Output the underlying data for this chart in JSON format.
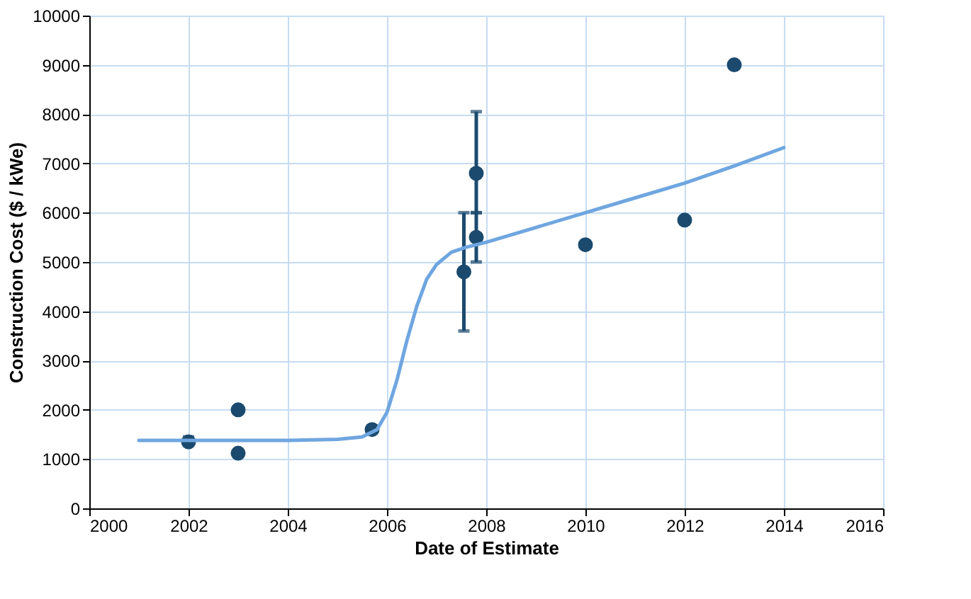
{
  "chart_data": {
    "type": "scatter",
    "xlabel": "Date of Estimate",
    "ylabel": "Construction Cost ($ / kWe)",
    "xlim": [
      2000,
      2016
    ],
    "xticks": [
      2000,
      2002,
      2004,
      2006,
      2008,
      2010,
      2012,
      2014,
      2016
    ],
    "ylim": [
      0,
      10000
    ],
    "yticks": [
      0,
      1000,
      2000,
      3000,
      4000,
      5000,
      6000,
      7000,
      8000,
      9000,
      10000
    ],
    "grid": true,
    "series": [
      {
        "marker": "circle",
        "color": "#1b4a6e",
        "x": [
          2002,
          2003,
          2003,
          2005.7,
          2007.55,
          2007.8,
          2007.8,
          2010,
          2012,
          2013
        ],
        "values": [
          1350,
          2000,
          1120,
          1600,
          4800,
          6800,
          5500,
          5350,
          5850,
          9000
        ],
        "errors": [
          [
            1300,
            1450
          ],
          null,
          null,
          null,
          [
            3600,
            6000
          ],
          [
            6000,
            8050
          ],
          [
            5000,
            6000
          ],
          null,
          null,
          null
        ]
      },
      {
        "type": "line",
        "color": "#6fa6e0",
        "line_style": "solid",
        "marker": "none",
        "x": [
          2001,
          2004,
          2005,
          2005.5,
          2005.8,
          2006,
          2006.2,
          2006.4,
          2006.6,
          2006.8,
          2007,
          2007.3,
          2007.6,
          2008,
          2009,
          2010,
          2011,
          2012,
          2013,
          2014
        ],
        "values": [
          1380,
          1380,
          1400,
          1450,
          1600,
          1950,
          2600,
          3400,
          4100,
          4650,
          4950,
          5200,
          5300,
          5400,
          5700,
          6000,
          6300,
          6600,
          6950,
          7320
        ]
      }
    ]
  }
}
